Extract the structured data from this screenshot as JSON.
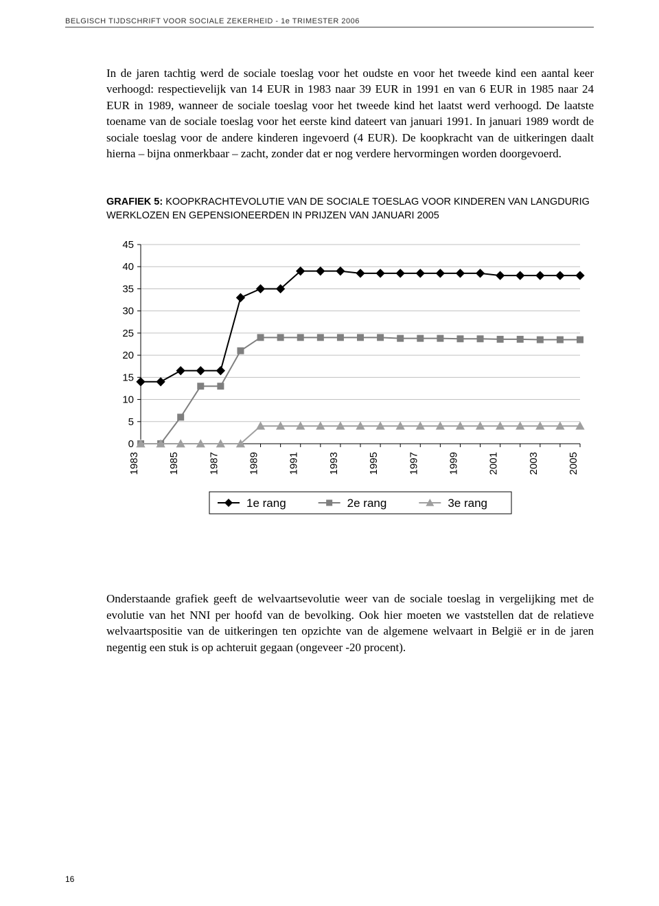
{
  "header": "BELGISCH TIJDSCHRIFT VOOR SOCIALE ZEKERHEID - 1e TRIMESTER 2006",
  "paragraph1": "In de jaren tachtig werd de sociale toeslag voor het oudste en voor het tweede kind een aantal keer verhoogd: respectievelijk van 14 EUR in 1983 naar 39 EUR in 1991 en van 6 EUR in 1985 naar 24 EUR in 1989, wanneer de sociale toeslag voor het tweede kind het laatst werd verhoogd. De laatste toename van de sociale toeslag voor het eerste kind dateert van januari 1991. In januari 1989 wordt de sociale toeslag voor de andere kinderen ingevoerd (4 EUR). De koopkracht van de uitkeringen daalt hierna – bijna onmerkbaar – zacht, zonder dat er nog verdere hervormingen worden doorgevoerd.",
  "chart_title_bold": "GRAFIEK 5: ",
  "chart_title_rest": "KOOPKRACHTEVOLUTIE VAN DE SOCIALE TOESLAG VOOR KINDEREN VAN LANGDURIG WERKLOZEN EN GEPENSIONEERDEN IN PRIJZEN VAN JANUARI 2005",
  "paragraph2": "Onderstaande grafiek geeft de welvaartsevolutie weer van de sociale toeslag in vergelijking met de evolutie van het NNI per hoofd van de bevolking. Ook hier moeten we vaststellen dat de relatieve welvaartspositie van de uitkeringen ten opzichte van de algemene welvaart in België er in de jaren negentig een stuk is op achteruit gegaan (ongeveer -20 procent).",
  "page_number": "16",
  "chart": {
    "type": "line",
    "x_labels": [
      "1983",
      "1985",
      "1987",
      "1989",
      "1991",
      "1993",
      "1995",
      "1997",
      "1999",
      "2001",
      "2003",
      "2005"
    ],
    "y_ticks": [
      0,
      5,
      10,
      15,
      20,
      25,
      30,
      35,
      40,
      45
    ],
    "ylim": [
      0,
      45
    ],
    "grid_color": "#c0c0c0",
    "axis_line_color": "#000000",
    "fontsize_axis": 15,
    "background_color": "#ffffff",
    "series": [
      {
        "name": "1e rang",
        "marker": "diamond",
        "color": "#000000",
        "line_color": "#000000",
        "line_width": 2,
        "marker_size": 8,
        "years": [
          1983,
          1984,
          1985,
          1986,
          1987,
          1988,
          1989,
          1990,
          1991,
          1992,
          1993,
          1994,
          1995,
          1996,
          1997,
          1998,
          1999,
          2000,
          2001,
          2002,
          2003,
          2004,
          2005
        ],
        "values": [
          14,
          14,
          16.5,
          16.5,
          16.5,
          33,
          35,
          35,
          39,
          39,
          39,
          38.5,
          38.5,
          38.5,
          38.5,
          38.5,
          38.5,
          38.5,
          38,
          38,
          38,
          38,
          38
        ]
      },
      {
        "name": "2e rang",
        "marker": "square",
        "color": "#7f7f7f",
        "line_color": "#7f7f7f",
        "line_width": 2,
        "marker_size": 8,
        "years": [
          1983,
          1984,
          1985,
          1986,
          1987,
          1988,
          1989,
          1990,
          1991,
          1992,
          1993,
          1994,
          1995,
          1996,
          1997,
          1998,
          1999,
          2000,
          2001,
          2002,
          2003,
          2004,
          2005
        ],
        "values": [
          0,
          0,
          6,
          13,
          13,
          21,
          24,
          24,
          24,
          24,
          24,
          24,
          24,
          23.8,
          23.8,
          23.8,
          23.7,
          23.7,
          23.6,
          23.6,
          23.5,
          23.5,
          23.5
        ]
      },
      {
        "name": "3e rang",
        "marker": "triangle",
        "color": "#9f9f9f",
        "line_color": "#9f9f9f",
        "line_width": 2,
        "marker_size": 8,
        "years": [
          1983,
          1984,
          1985,
          1986,
          1987,
          1988,
          1989,
          1990,
          1991,
          1992,
          1993,
          1994,
          1995,
          1996,
          1997,
          1998,
          1999,
          2000,
          2001,
          2002,
          2003,
          2004,
          2005
        ],
        "values": [
          0,
          0,
          0,
          0,
          0,
          0,
          4,
          4,
          4,
          4,
          4,
          4,
          4,
          4,
          4,
          4,
          4,
          4,
          4,
          4,
          4,
          4,
          4
        ]
      }
    ],
    "legend": {
      "labels": [
        "1e rang",
        "2e rang",
        "3e rang"
      ],
      "markers": [
        "diamond",
        "square",
        "triangle"
      ],
      "colors": [
        "#000000",
        "#7f7f7f",
        "#9f9f9f"
      ]
    }
  }
}
